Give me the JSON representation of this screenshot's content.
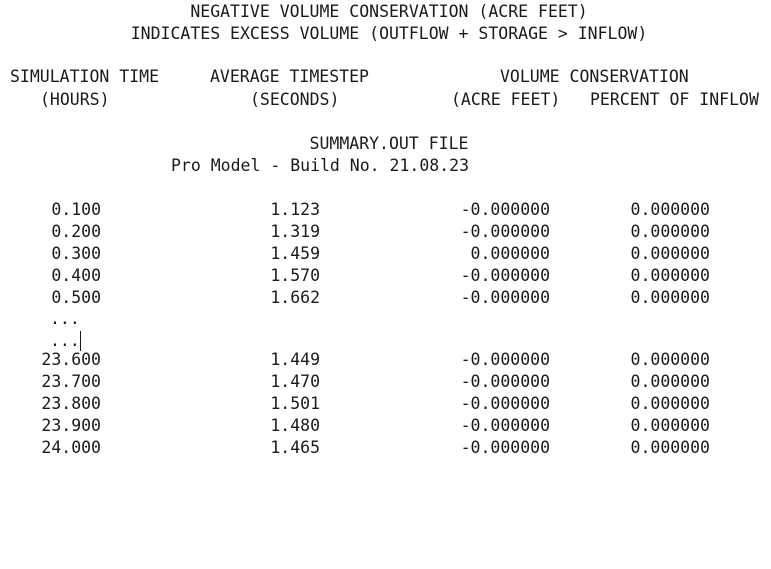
{
  "header": {
    "line1": "NEGATIVE VOLUME CONSERVATION (ACRE FEET)",
    "line2": "INDICATES EXCESS VOLUME (OUTFLOW + STORAGE > INFLOW)"
  },
  "columns": {
    "time_title": "SIMULATION TIME",
    "time_unit": "(HOURS)",
    "step_title": "AVERAGE TIMESTEP",
    "step_unit": "(SECONDS)",
    "vol_title": "VOLUME CONSERVATION",
    "vol_unit": "(ACRE FEET)",
    "pct_unit": "PERCENT OF INFLOW"
  },
  "file": {
    "name": "SUMMARY.OUT FILE",
    "build": "Pro Model - Build No. 21.08.23"
  },
  "rows_top": [
    {
      "time": "0.100",
      "step": "1.123",
      "vol": "-0.000000",
      "pct": "0.000000"
    },
    {
      "time": "0.200",
      "step": "1.319",
      "vol": "-0.000000",
      "pct": "0.000000"
    },
    {
      "time": "0.300",
      "step": "1.459",
      "vol": "0.000000",
      "pct": "0.000000"
    },
    {
      "time": "0.400",
      "step": "1.570",
      "vol": "-0.000000",
      "pct": "0.000000"
    },
    {
      "time": "0.500",
      "step": "1.662",
      "vol": "-0.000000",
      "pct": "0.000000"
    }
  ],
  "ellipsis": [
    "...",
    "..."
  ],
  "rows_bottom": [
    {
      "time": "23.600",
      "step": "1.449",
      "vol": "-0.000000",
      "pct": "0.000000"
    },
    {
      "time": "23.700",
      "step": "1.470",
      "vol": "-0.000000",
      "pct": "0.000000"
    },
    {
      "time": "23.800",
      "step": "1.501",
      "vol": "-0.000000",
      "pct": "0.000000"
    },
    {
      "time": "23.900",
      "step": "1.480",
      "vol": "-0.000000",
      "pct": "0.000000"
    },
    {
      "time": "24.000",
      "step": "1.465",
      "vol": "-0.000000",
      "pct": "0.000000"
    }
  ]
}
